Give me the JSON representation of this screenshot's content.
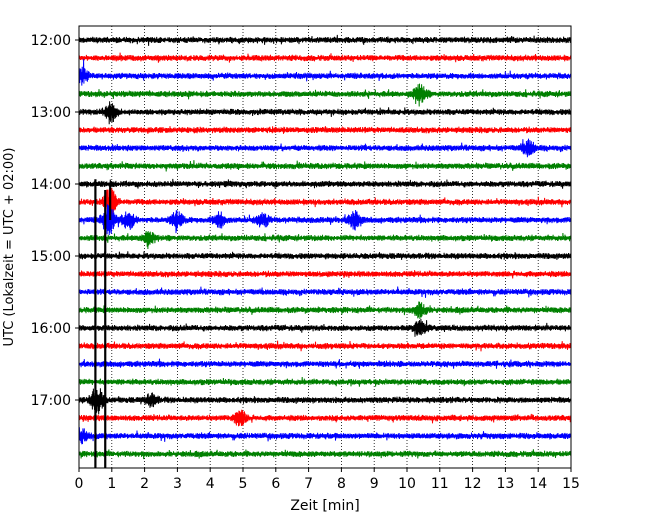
{
  "chart_data": {
    "type": "line",
    "title": "",
    "xlabel": "Zeit  [min]",
    "ylabel": "UTC (Lokalzeit = UTC + 02:00)",
    "xlim": [
      0,
      15
    ],
    "x_ticks": [
      "0",
      "1",
      "2",
      "3",
      "4",
      "5",
      "6",
      "7",
      "8",
      "9",
      "10",
      "11",
      "12",
      "13",
      "14",
      "15"
    ],
    "grid": "vertical dotted",
    "trace_interval_min": 15,
    "trace_colors": [
      "#000000",
      "#ff0000",
      "#0000ff",
      "#008000"
    ],
    "y_ticks": [
      "12:00",
      "13:00",
      "14:00",
      "15:00",
      "16:00",
      "17:00"
    ],
    "traces": [
      {
        "start": "12:00",
        "color": "#000000"
      },
      {
        "start": "12:15",
        "color": "#ff0000"
      },
      {
        "start": "12:30",
        "color": "#0000ff"
      },
      {
        "start": "12:45",
        "color": "#008000"
      },
      {
        "start": "13:00",
        "color": "#000000"
      },
      {
        "start": "13:15",
        "color": "#ff0000"
      },
      {
        "start": "13:30",
        "color": "#0000ff"
      },
      {
        "start": "13:45",
        "color": "#008000"
      },
      {
        "start": "14:00",
        "color": "#000000"
      },
      {
        "start": "14:15",
        "color": "#ff0000"
      },
      {
        "start": "14:30",
        "color": "#0000ff"
      },
      {
        "start": "14:45",
        "color": "#008000"
      },
      {
        "start": "15:00",
        "color": "#000000"
      },
      {
        "start": "15:15",
        "color": "#ff0000"
      },
      {
        "start": "15:30",
        "color": "#0000ff"
      },
      {
        "start": "15:45",
        "color": "#008000"
      },
      {
        "start": "16:00",
        "color": "#000000"
      },
      {
        "start": "16:15",
        "color": "#ff0000"
      },
      {
        "start": "16:30",
        "color": "#0000ff"
      },
      {
        "start": "16:45",
        "color": "#008000"
      },
      {
        "start": "17:00",
        "color": "#000000"
      },
      {
        "start": "17:15",
        "color": "#ff0000"
      },
      {
        "start": "17:30",
        "color": "#0000ff"
      },
      {
        "start": "17:45",
        "color": "#008000"
      }
    ],
    "events": [
      {
        "start": "12:30",
        "minute": 0.1,
        "amplitude": 0.5
      },
      {
        "start": "12:45",
        "minute": 10.4,
        "amplitude": 0.6
      },
      {
        "start": "13:00",
        "minute": 0.95,
        "amplitude": 0.7
      },
      {
        "start": "13:30",
        "minute": 13.7,
        "amplitude": 0.5
      },
      {
        "start": "14:15",
        "minute": 0.95,
        "amplitude": 1.0
      },
      {
        "start": "14:30",
        "minute": 0.9,
        "amplitude": 1.0
      },
      {
        "start": "14:30",
        "minute": 1.5,
        "amplitude": 0.6
      },
      {
        "start": "14:30",
        "minute": 3.0,
        "amplitude": 0.6
      },
      {
        "start": "14:30",
        "minute": 4.3,
        "amplitude": 0.5
      },
      {
        "start": "14:30",
        "minute": 5.6,
        "amplitude": 0.45
      },
      {
        "start": "14:30",
        "minute": 8.4,
        "amplitude": 0.55
      },
      {
        "start": "14:45",
        "minute": 2.1,
        "amplitude": 0.4
      },
      {
        "start": "15:45",
        "minute": 10.4,
        "amplitude": 0.5
      },
      {
        "start": "16:00",
        "minute": 10.4,
        "amplitude": 0.5
      },
      {
        "start": "17:00",
        "minute": 0.55,
        "amplitude": 1.0
      },
      {
        "start": "17:00",
        "minute": 2.2,
        "amplitude": 0.4
      },
      {
        "start": "17:15",
        "minute": 4.9,
        "amplitude": 0.5
      },
      {
        "start": "17:30",
        "minute": 0.1,
        "amplitude": 0.4
      }
    ],
    "spikes": [
      {
        "minute": 0.5,
        "from": "13:56",
        "to": "18:00"
      },
      {
        "minute": 0.8,
        "from": "14:05",
        "to": "18:00"
      },
      {
        "minute": 0.95,
        "from": "14:00",
        "to": "14:30"
      }
    ]
  }
}
